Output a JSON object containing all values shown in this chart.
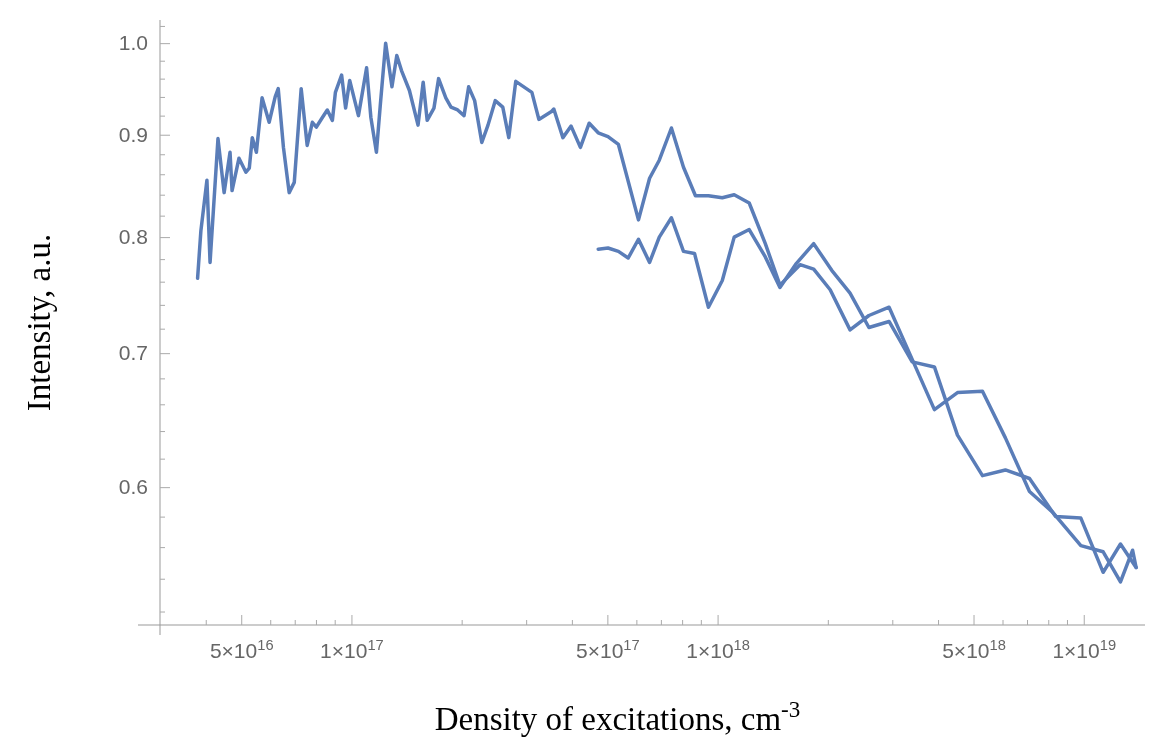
{
  "chart_data": {
    "type": "line",
    "xlabel": "Density of excitations, cm$^{-3}$",
    "ylabel": "Intensity, a.u.",
    "log": "xy",
    "xlim": [
      3e+16,
      1.47e+19
    ],
    "ylim": [
      0.512,
      1.027
    ],
    "xticks": [
      {
        "value": 4e+16,
        "label": null
      },
      {
        "value": 5e+16,
        "label": "5×10$^{16}$"
      },
      {
        "value": 6e+16,
        "label": null
      },
      {
        "value": 7e+16,
        "label": null
      },
      {
        "value": 8e+16,
        "label": null
      },
      {
        "value": 9e+16,
        "label": null
      },
      {
        "value": 1e+17,
        "label": "1×10$^{17}$"
      },
      {
        "value": 2e+17,
        "label": null
      },
      {
        "value": 3e+17,
        "label": null
      },
      {
        "value": 4e+17,
        "label": null
      },
      {
        "value": 5e+17,
        "label": "5×10$^{17}$"
      },
      {
        "value": 6e+17,
        "label": null
      },
      {
        "value": 7e+17,
        "label": null
      },
      {
        "value": 8e+17,
        "label": null
      },
      {
        "value": 9e+17,
        "label": null
      },
      {
        "value": 1e+18,
        "label": "1×10$^{18}$"
      },
      {
        "value": 2e+18,
        "label": null
      },
      {
        "value": 3e+18,
        "label": null
      },
      {
        "value": 4e+18,
        "label": null
      },
      {
        "value": 5e+18,
        "label": "5×10$^{18}$"
      },
      {
        "value": 6e+18,
        "label": null
      },
      {
        "value": 7e+18,
        "label": null
      },
      {
        "value": 8e+18,
        "label": null
      },
      {
        "value": 9e+18,
        "label": null
      },
      {
        "value": 1e+19,
        "label": "1×10$^{19}$"
      }
    ],
    "yticks": [
      {
        "value": 0.52,
        "label": null
      },
      {
        "value": 0.54,
        "label": null
      },
      {
        "value": 0.56,
        "label": null
      },
      {
        "value": 0.58,
        "label": null
      },
      0.6,
      {
        "value": 0.62,
        "label": null
      },
      {
        "value": 0.64,
        "label": null
      },
      {
        "value": 0.66,
        "label": null
      },
      {
        "value": 0.68,
        "label": null
      },
      0.7,
      {
        "value": 0.72,
        "label": null
      },
      {
        "value": 0.74,
        "label": null
      },
      {
        "value": 0.76,
        "label": null
      },
      {
        "value": 0.78,
        "label": null
      },
      0.8,
      {
        "value": 0.82,
        "label": null
      },
      {
        "value": 0.84,
        "label": null
      },
      {
        "value": 0.86,
        "label": null
      },
      {
        "value": 0.88,
        "label": null
      },
      0.9,
      {
        "value": 0.92,
        "label": null
      },
      {
        "value": 0.94,
        "label": null
      },
      {
        "value": 0.96,
        "label": null
      },
      {
        "value": 0.98,
        "label": null
      },
      {
        "value": 1.0,
        "label": "1.0"
      },
      {
        "value": 1.02,
        "label": null
      }
    ],
    "series": [
      {
        "color": "#5a7db8",
        "x": [
          3.8e+16,
          3.88e+16,
          4.03e+16,
          4.11e+16,
          4.32e+16,
          4.49e+16,
          4.66e+16,
          4.72e+16,
          4.93e+16,
          5.15e+16,
          5.26e+16,
          5.36e+16,
          5.5e+16,
          5.7e+16,
          5.96e+16,
          6.19e+16,
          6.31e+16,
          6.52e+16,
          6.76e+16,
          6.98e+16,
          7.29e+16,
          7.57e+16,
          7.82e+16,
          8.02e+16,
          8.33e+16,
          8.59e+16,
          8.87e+16,
          9.04e+16,
          9.4e+16,
          9.64e+16,
          9.89e+16,
          1.045e+17,
          1.1e+17,
          1.13e+17,
          1.17e+17,
          1.2e+17,
          1.24e+17,
          1.29e+17,
          1.33e+17,
          1.37e+17,
          1.44e+17,
          1.52e+17,
          1.57e+17,
          1.61e+17,
          1.68e+17,
          1.73e+17,
          1.81e+17,
          1.87e+17,
          1.95e+17,
          2.03e+17,
          2.09e+17,
          2.17e+17,
          2.27e+17,
          2.36e+17,
          2.47e+17,
          2.59e+17,
          2.69e+17,
          2.81e+17,
          3.11e+17,
          3.25e+17,
          3.51e+17,
          3.57e+17,
          3.78e+17,
          3.98e+17,
          4.22e+17,
          4.46e+17,
          4.72e+17,
          5.02e+17,
          5.36e+17,
          6.08e+17,
          6.52e+17,
          6.93e+17,
          7.48e+17,
          8.07e+17,
          8.7e+17,
          9.44e+17,
          1.03e+18,
          1.11e+18,
          1.22e+18,
          1.35e+18,
          1.48e+18,
          1.68e+18,
          1.83e+18,
          2.03e+18,
          2.3e+18,
          2.59e+18,
          2.94e+18,
          3.4e+18,
          3.91e+18,
          4.52e+18,
          5.29e+18,
          6.11e+18,
          7.11e+18,
          8.22e+18,
          9.82e+18,
          1.13e+19,
          1.26e+19,
          1.36e+19,
          1.39e+19
        ],
        "values": [
          0.763,
          0.806,
          0.854,
          0.777,
          0.896,
          0.842,
          0.882,
          0.844,
          0.876,
          0.862,
          0.866,
          0.897,
          0.882,
          0.939,
          0.913,
          0.94,
          0.949,
          0.887,
          0.842,
          0.852,
          0.949,
          0.889,
          0.913,
          0.908,
          0.918,
          0.926,
          0.915,
          0.945,
          0.964,
          0.928,
          0.958,
          0.92,
          0.972,
          0.918,
          0.882,
          0.933,
          1.0,
          0.951,
          0.986,
          0.969,
          0.947,
          0.91,
          0.956,
          0.915,
          0.928,
          0.96,
          0.939,
          0.929,
          0.926,
          0.92,
          0.951,
          0.936,
          0.892,
          0.91,
          0.936,
          0.929,
          0.897,
          0.957,
          0.945,
          0.916,
          0.924,
          0.927,
          0.897,
          0.909,
          0.887,
          0.912,
          0.902,
          0.898,
          0.89,
          0.816,
          0.856,
          0.874,
          0.907,
          0.867,
          0.839,
          0.839,
          0.837,
          0.84,
          0.832,
          0.794,
          0.757,
          0.775,
          0.771,
          0.753,
          0.719,
          0.731,
          0.738,
          0.695,
          0.656,
          0.669,
          0.67,
          0.635,
          0.597,
          0.583,
          0.561,
          0.557,
          0.538,
          0.558,
          0.547
        ]
      },
      {
        "color": "#5a7db8",
        "x": [
          4.72e+17,
          5.02e+17,
          5.36e+17,
          5.7e+17,
          6.08e+17,
          6.52e+17,
          6.93e+17,
          7.48e+17,
          8.07e+17,
          8.65e+17,
          9.44e+17,
          1.03e+18,
          1.11e+18,
          1.22e+18,
          1.35e+18,
          1.48e+18,
          1.64e+18,
          1.83e+18,
          2.05e+18,
          2.3e+18,
          2.59e+18,
          2.94e+18,
          3.4e+18,
          3.91e+18,
          4.52e+18,
          5.29e+18,
          6.11e+18,
          7.11e+18,
          8.38e+18,
          9.82e+18,
          1.13e+19,
          1.26e+19,
          1.39e+19
        ],
        "values": [
          0.789,
          0.79,
          0.787,
          0.781,
          0.798,
          0.777,
          0.8,
          0.818,
          0.787,
          0.785,
          0.738,
          0.761,
          0.8,
          0.807,
          0.782,
          0.755,
          0.776,
          0.794,
          0.77,
          0.75,
          0.721,
          0.726,
          0.693,
          0.689,
          0.637,
          0.608,
          0.612,
          0.606,
          0.58,
          0.579,
          0.544,
          0.562,
          0.547
        ]
      }
    ]
  }
}
